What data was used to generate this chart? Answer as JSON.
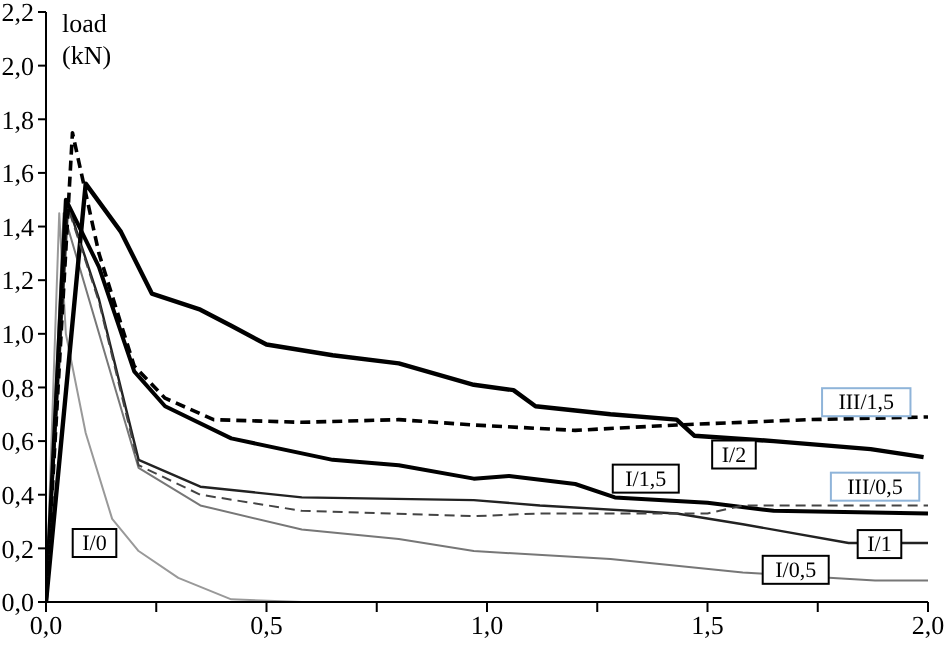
{
  "chart_data": {
    "type": "line",
    "ylabel": "load (kN)",
    "xlim": [
      0,
      2
    ],
    "ylim": [
      0,
      2.2
    ],
    "xticks": [
      {
        "value": 0,
        "label": "0,0"
      },
      {
        "value": 0.25,
        "label": null
      },
      {
        "value": 0.5,
        "label": "0,5"
      },
      {
        "value": 0.75,
        "label": null
      },
      {
        "value": 1,
        "label": "1,0"
      },
      {
        "value": 1.25,
        "label": null
      },
      {
        "value": 1.5,
        "label": "1,5"
      },
      {
        "value": 1.75,
        "label": null
      },
      {
        "value": 2,
        "label": "2,0"
      }
    ],
    "yticks": [
      {
        "value": 0,
        "label": "0,0"
      },
      {
        "value": 0.2,
        "label": "0,2"
      },
      {
        "value": 0.4,
        "label": "0,4"
      },
      {
        "value": 0.6,
        "label": "0,6"
      },
      {
        "value": 0.8,
        "label": "0,8"
      },
      {
        "value": 1,
        "label": "1,0"
      },
      {
        "value": 1.2,
        "label": "1,2"
      },
      {
        "value": 1.4,
        "label": "1,4"
      },
      {
        "value": 1.6,
        "label": "1,6"
      },
      {
        "value": 1.8,
        "label": "1,8"
      },
      {
        "value": 2,
        "label": "2,0"
      },
      {
        "value": 2.2,
        "label": "2,2"
      }
    ],
    "grid": false,
    "legend": false,
    "marker": "none",
    "series": [
      {
        "name": "I/0",
        "color": "#999999",
        "line_style": "solid",
        "x": [
          0,
          0.03,
          0.045,
          0.09,
          0.15,
          0.21,
          0.3,
          0.42,
          0.58
        ],
        "values": [
          0,
          1.45,
          1.0,
          0.63,
          0.31,
          0.19,
          0.09,
          0.01,
          0
        ]
      },
      {
        "name": "I/0,5",
        "color": "#777777",
        "line_style": "solid",
        "x": [
          0,
          0.04,
          0.21,
          0.35,
          0.58,
          0.8,
          0.97,
          1.28,
          1.58,
          1.88,
          2.0
        ],
        "values": [
          0,
          1.45,
          0.5,
          0.36,
          0.27,
          0.235,
          0.19,
          0.16,
          0.11,
          0.08,
          0.08
        ]
      },
      {
        "name": "I/1",
        "color": "#222222",
        "line_style": "solid",
        "x": [
          0,
          0.05,
          0.12,
          0.21,
          0.35,
          0.58,
          0.97,
          1.12,
          1.43,
          1.58,
          1.82,
          2.0
        ],
        "values": [
          0,
          1.48,
          1.13,
          0.53,
          0.43,
          0.39,
          0.38,
          0.36,
          0.33,
          0.29,
          0.22,
          0.22
        ]
      },
      {
        "name": "I/1,5",
        "color": "#000000",
        "line_style": "solid",
        "x": [
          0,
          0.045,
          0.12,
          0.2,
          0.27,
          0.42,
          0.65,
          0.8,
          0.97,
          1.05,
          1.2,
          1.29,
          1.5,
          1.65,
          2.0
        ],
        "values": [
          0,
          1.5,
          1.25,
          0.86,
          0.73,
          0.61,
          0.53,
          0.51,
          0.46,
          0.47,
          0.44,
          0.39,
          0.37,
          0.34,
          0.33
        ]
      },
      {
        "name": "I/2",
        "color": "#000000",
        "line_style": "solid",
        "x": [
          0,
          0.09,
          0.17,
          0.24,
          0.35,
          0.42,
          0.5,
          0.65,
          0.8,
          0.97,
          1.06,
          1.11,
          1.28,
          1.43,
          1.47,
          1.65,
          1.87,
          1.99
        ],
        "values": [
          0,
          1.56,
          1.38,
          1.15,
          1.09,
          1.03,
          0.96,
          0.92,
          0.89,
          0.81,
          0.79,
          0.73,
          0.7,
          0.68,
          0.62,
          0.6,
          0.57,
          0.54
        ]
      },
      {
        "name": "III/0,5",
        "color": "#444444",
        "line_style": "dashed",
        "x": [
          0,
          0.05,
          0.12,
          0.21,
          0.35,
          0.58,
          0.97,
          1.12,
          1.5,
          1.58,
          1.73,
          2.0
        ],
        "values": [
          0,
          1.47,
          1.12,
          0.51,
          0.4,
          0.34,
          0.32,
          0.33,
          0.33,
          0.36,
          0.36,
          0.36
        ]
      },
      {
        "name": "III/1,5",
        "color": "#000000",
        "line_style": "dashed",
        "x": [
          0,
          0.06,
          0.12,
          0.2,
          0.27,
          0.38,
          0.58,
          0.8,
          0.97,
          1.2,
          1.43,
          1.73,
          2.0
        ],
        "values": [
          0,
          1.75,
          1.3,
          0.88,
          0.76,
          0.68,
          0.67,
          0.68,
          0.66,
          0.64,
          0.66,
          0.68,
          0.69
        ]
      }
    ]
  }
}
